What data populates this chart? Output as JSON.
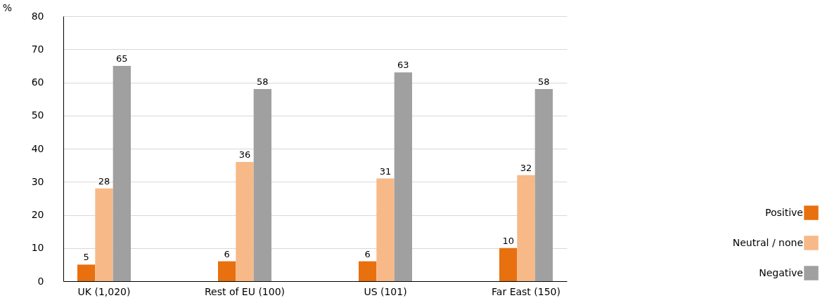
{
  "chart_data": {
    "type": "bar",
    "ylabel": "%",
    "categories": [
      "UK (1,020)",
      "Rest of EU (100)",
      "US (101)",
      "Far East (150)"
    ],
    "series": [
      {
        "name": "Positive",
        "color": "#e8700e",
        "values": [
          5,
          6,
          6,
          10
        ]
      },
      {
        "name": "Neutral / none",
        "color": "#f7b987",
        "values": [
          28,
          36,
          31,
          32
        ]
      },
      {
        "name": "Negative",
        "color": "#a0a0a0",
        "values": [
          65,
          58,
          63,
          58
        ]
      }
    ],
    "ylim": [
      0,
      80
    ],
    "yticks": [
      0,
      10,
      20,
      30,
      40,
      50,
      60,
      70,
      80
    ],
    "grid": "y",
    "legend": "right",
    "data_labels": true
  }
}
